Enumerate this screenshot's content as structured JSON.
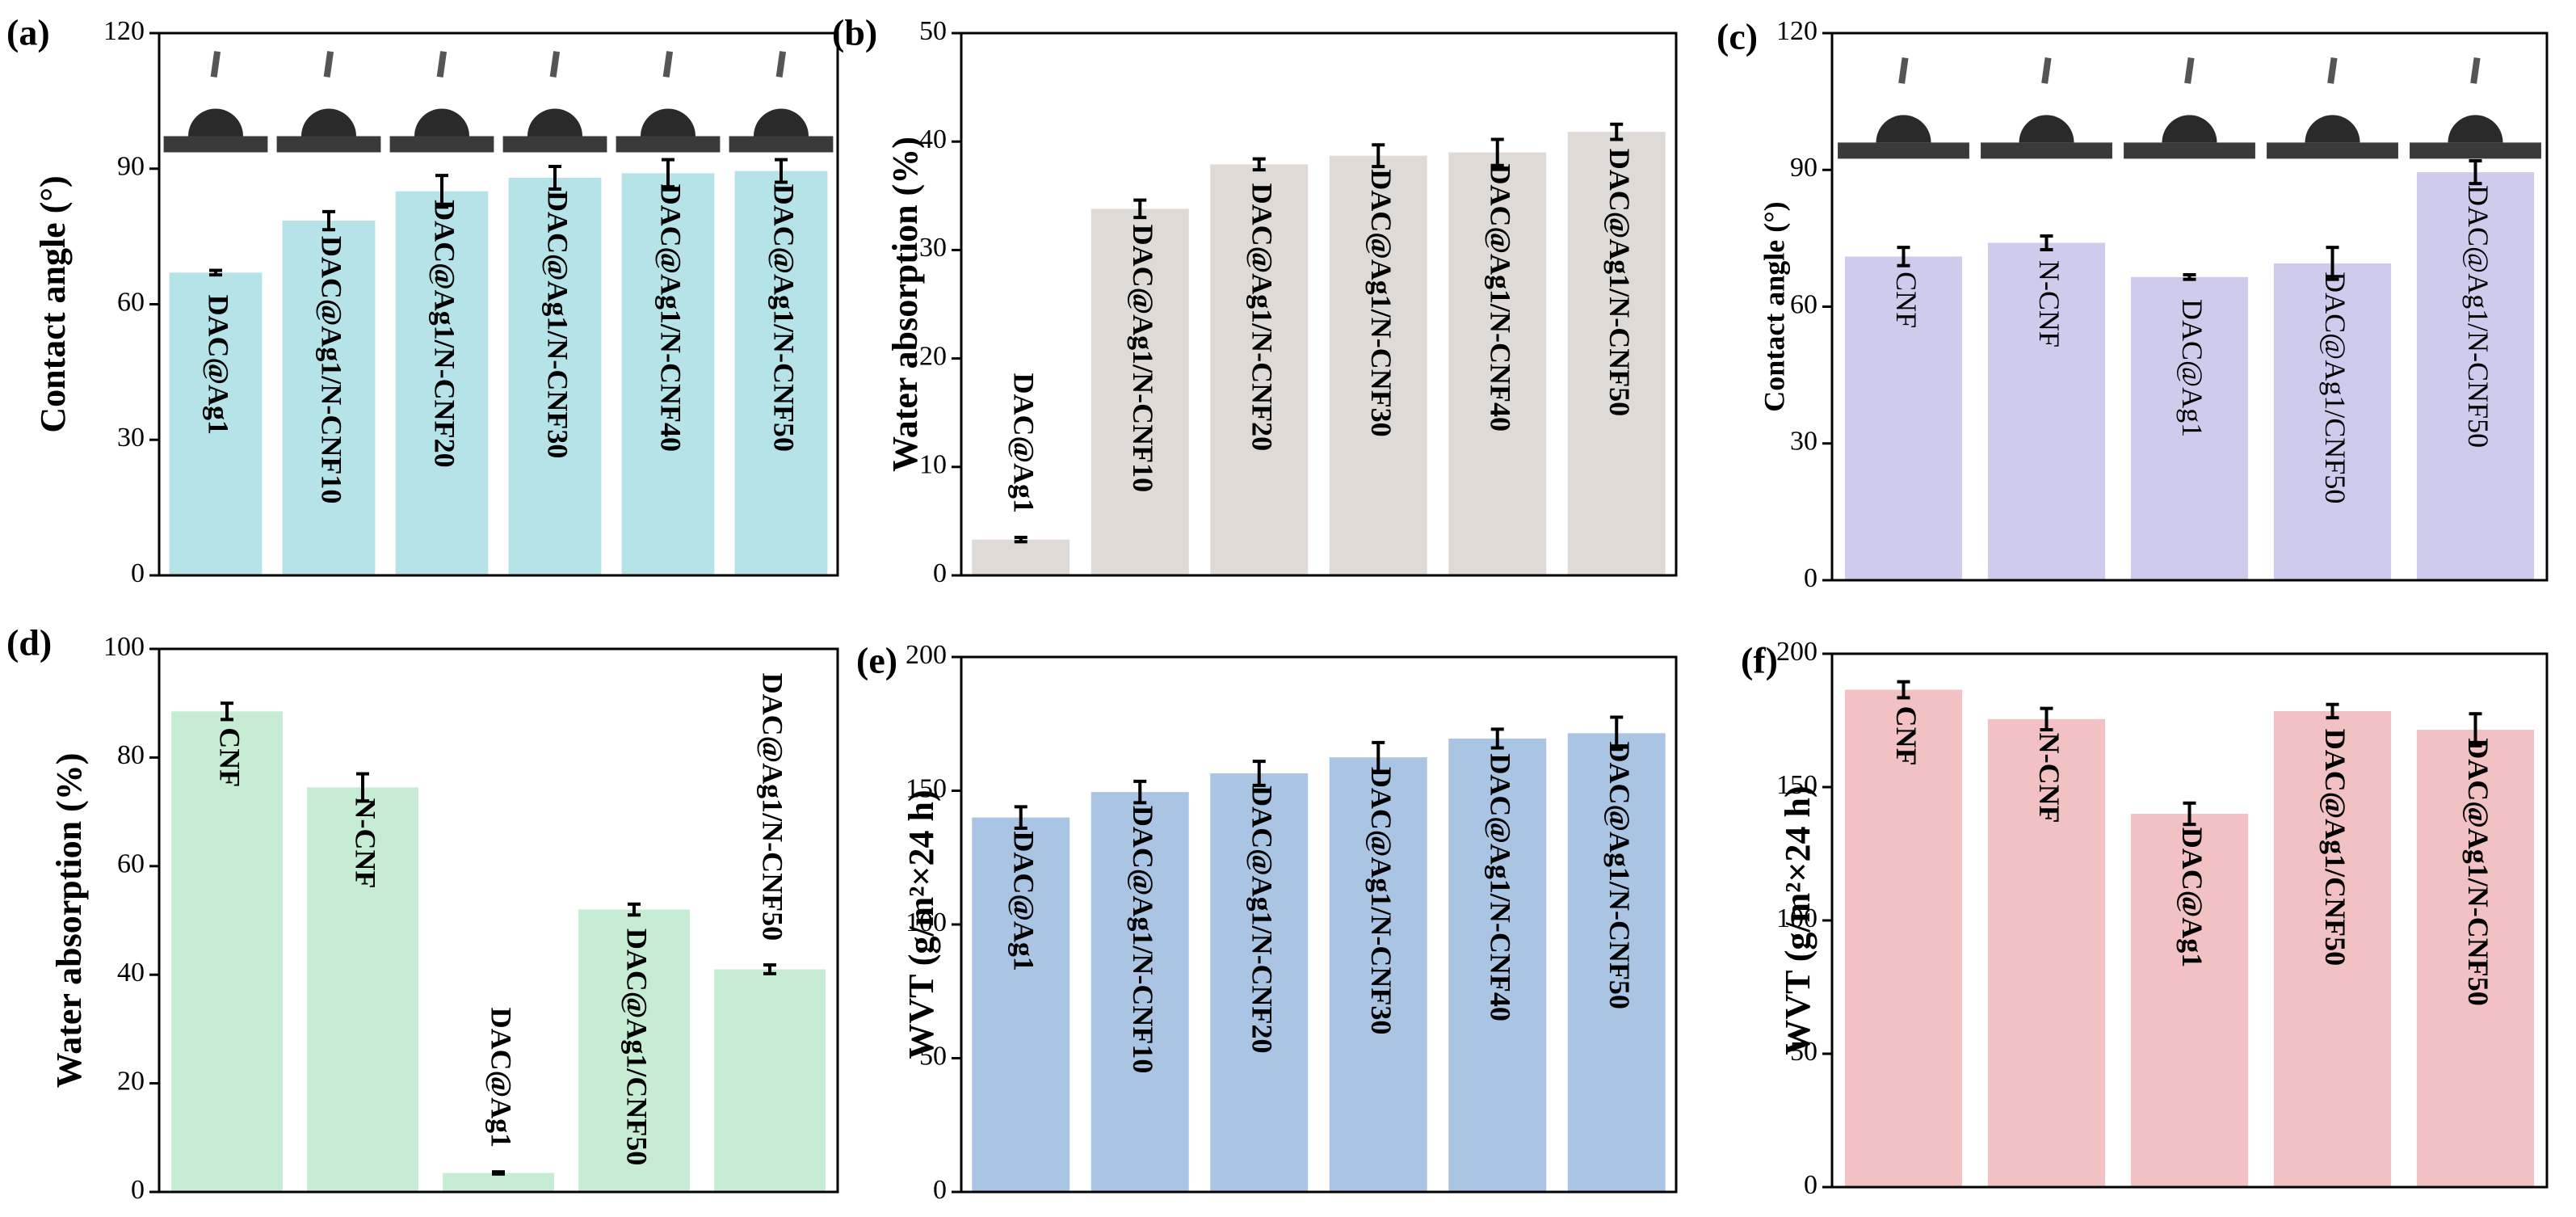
{
  "chart_data": [
    {
      "type": "bar",
      "panel": "(a)",
      "ylabel": "Contact angle (°)",
      "color": "#b6e3e8",
      "categories": [
        "DAC@Ag1",
        "DAC@Ag1/N-CNF10",
        "DAC@Ag1/N-CNF20",
        "DAC@Ag1/N-CNF30",
        "DAC@Ag1/N-CNF40",
        "DAC@Ag1/N-CNF50"
      ],
      "values": [
        67,
        78.5,
        85,
        88,
        89,
        89.5
      ],
      "errors": [
        0.5,
        2,
        3.5,
        2.5,
        3,
        2.5
      ],
      "ylim": [
        0,
        120
      ],
      "yticks": [
        0,
        30,
        60,
        90,
        120
      ]
    },
    {
      "type": "bar",
      "panel": "(b)",
      "ylabel": "Water absorption (%)",
      "color": "#e0dad7",
      "categories": [
        "DAC@Ag1",
        "DAC@Ag1/N-CNF10",
        "DAC@Ag1/N-CNF20",
        "DAC@Ag1/N-CNF30",
        "DAC@Ag1/N-CNF40",
        "DAC@Ag1/N-CNF50"
      ],
      "values": [
        3.3,
        33.8,
        37.9,
        38.7,
        39,
        40.9
      ],
      "errors": [
        0.2,
        0.8,
        0.5,
        1,
        1.2,
        0.7
      ],
      "ylim": [
        0,
        50
      ],
      "yticks": [
        0,
        10,
        20,
        30,
        40,
        50
      ]
    },
    {
      "type": "bar",
      "panel": "(c)",
      "ylabel": "Contact angle (°)",
      "color": "#cecbec",
      "categories": [
        "CNF",
        "N-CNF",
        "DAC@Ag1",
        "DAC@Ag1/CNF50",
        "DAC@Ag1/N-CNF50"
      ],
      "values": [
        71,
        74,
        66.5,
        69.5,
        89.5
      ],
      "errors": [
        2,
        1.5,
        0.5,
        3.5,
        2.5
      ],
      "ylim": [
        0,
        120
      ],
      "yticks": [
        0,
        30,
        60,
        90,
        120
      ]
    },
    {
      "type": "bar",
      "panel": "(d)",
      "ylabel": "Water absorption (%)",
      "color": "#c6ecd4",
      "categories": [
        "CNF",
        "N-CNF",
        "DAC@Ag1",
        "DAC@Ag1/CNF50",
        "DAC@Ag1/N-CNF50"
      ],
      "values": [
        88.5,
        74.5,
        3.5,
        52,
        41
      ],
      "errors": [
        1.5,
        2.5,
        0.2,
        1,
        0.8
      ],
      "ylim": [
        0,
        100
      ],
      "yticks": [
        0,
        20,
        40,
        60,
        80,
        100
      ]
    },
    {
      "type": "bar",
      "panel": "(e)",
      "ylabel": "WVT (g/m²×24 h)",
      "color": "#aac5e3",
      "categories": [
        "DAC@Ag1",
        "DAC@Ag1/N-CNF10",
        "DAC@Ag1/N-CNF20",
        "DAC@Ag1/N-CNF30",
        "DAC@Ag1/N-CNF40",
        "DAC@Ag1/N-CNF50"
      ],
      "values": [
        140,
        149.5,
        156.5,
        162.5,
        169.5,
        171.5
      ],
      "errors": [
        4,
        4,
        4.5,
        5.5,
        3.5,
        6
      ],
      "ylim": [
        0,
        200
      ],
      "yticks": [
        0,
        50,
        100,
        150,
        200
      ]
    },
    {
      "type": "bar",
      "panel": "(f)",
      "ylabel": "WVT (g/m²×24 h)",
      "color": "#f1c1c4",
      "categories": [
        "CNF",
        "N-CNF",
        "DAC@Ag1",
        "DAC@Ag1/CNF50",
        "DAC@Ag1/N-CNF50"
      ],
      "values": [
        186.5,
        175.5,
        140,
        178.5,
        171.5
      ],
      "errors": [
        3,
        4,
        4,
        2.5,
        6
      ],
      "ylim": [
        0,
        200
      ],
      "yticks": [
        0,
        50,
        100,
        150,
        200
      ]
    }
  ]
}
